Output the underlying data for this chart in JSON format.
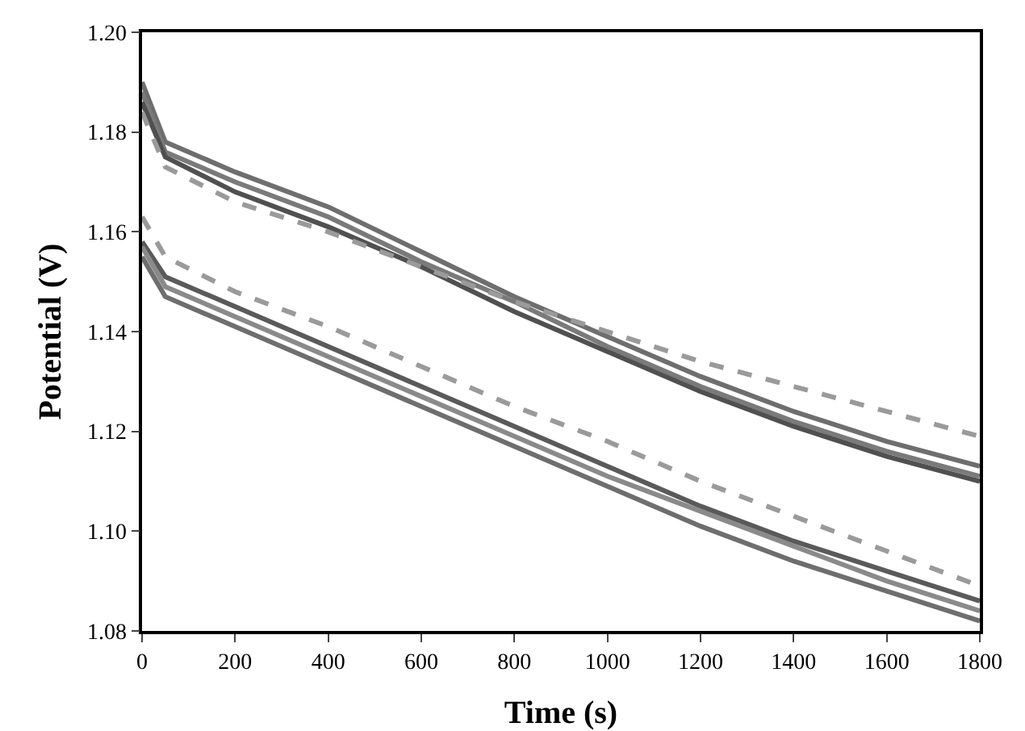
{
  "chart_data": {
    "type": "line",
    "xlabel": "Time (s)",
    "ylabel": "Potential (V)",
    "x": [
      0,
      50,
      200,
      400,
      600,
      800,
      1000,
      1200,
      1400,
      1600,
      1800
    ],
    "xlim": [
      0,
      1800
    ],
    "xticks": [
      0,
      200,
      400,
      600,
      800,
      1000,
      1200,
      1400,
      1600,
      1800
    ],
    "ylim": [
      1.08,
      1.2
    ],
    "yticks": [
      {
        "value": 1.08,
        "label": "1.08"
      },
      {
        "value": 1.1,
        "label": "1.10"
      },
      {
        "value": 1.12,
        "label": "1.12"
      },
      {
        "value": 1.14,
        "label": "1.14"
      },
      {
        "value": 1.16,
        "label": "1.16"
      },
      {
        "value": 1.18,
        "label": "1.18"
      },
      {
        "value": 1.2,
        "label": "1.20"
      }
    ],
    "grid": false,
    "marker": "none",
    "series": [
      {
        "color": "#6e6e6e",
        "line_style": "solid",
        "values": [
          1.19,
          1.178,
          1.172,
          1.165,
          1.156,
          1.147,
          1.139,
          1.131,
          1.124,
          1.118,
          1.113
        ]
      },
      {
        "color": "#7a7a7a",
        "line_style": "solid",
        "values": [
          1.188,
          1.176,
          1.17,
          1.163,
          1.154,
          1.146,
          1.137,
          1.129,
          1.122,
          1.116,
          1.111
        ]
      },
      {
        "color": "#505050",
        "line_style": "solid",
        "values": [
          1.186,
          1.175,
          1.168,
          1.161,
          1.153,
          1.144,
          1.136,
          1.128,
          1.121,
          1.115,
          1.11
        ]
      },
      {
        "color": "#9a9a9a",
        "line_style": "dashed",
        "values": [
          1.184,
          1.173,
          1.166,
          1.16,
          1.153,
          1.146,
          1.14,
          1.134,
          1.129,
          1.124,
          1.119
        ]
      },
      {
        "color": "#9a9a9a",
        "line_style": "dashed",
        "values": [
          1.163,
          1.155,
          1.148,
          1.141,
          1.133,
          1.125,
          1.118,
          1.11,
          1.103,
          1.096,
          1.089
        ]
      },
      {
        "color": "#5a5a5a",
        "line_style": "solid",
        "values": [
          1.158,
          1.151,
          1.145,
          1.137,
          1.129,
          1.121,
          1.113,
          1.105,
          1.098,
          1.092,
          1.086
        ]
      },
      {
        "color": "#8a8a8a",
        "line_style": "solid",
        "values": [
          1.157,
          1.149,
          1.143,
          1.135,
          1.127,
          1.119,
          1.111,
          1.104,
          1.097,
          1.09,
          1.084
        ]
      },
      {
        "color": "#6e6e6e",
        "line_style": "solid",
        "values": [
          1.155,
          1.147,
          1.141,
          1.133,
          1.125,
          1.117,
          1.109,
          1.101,
          1.094,
          1.088,
          1.082
        ]
      }
    ]
  }
}
